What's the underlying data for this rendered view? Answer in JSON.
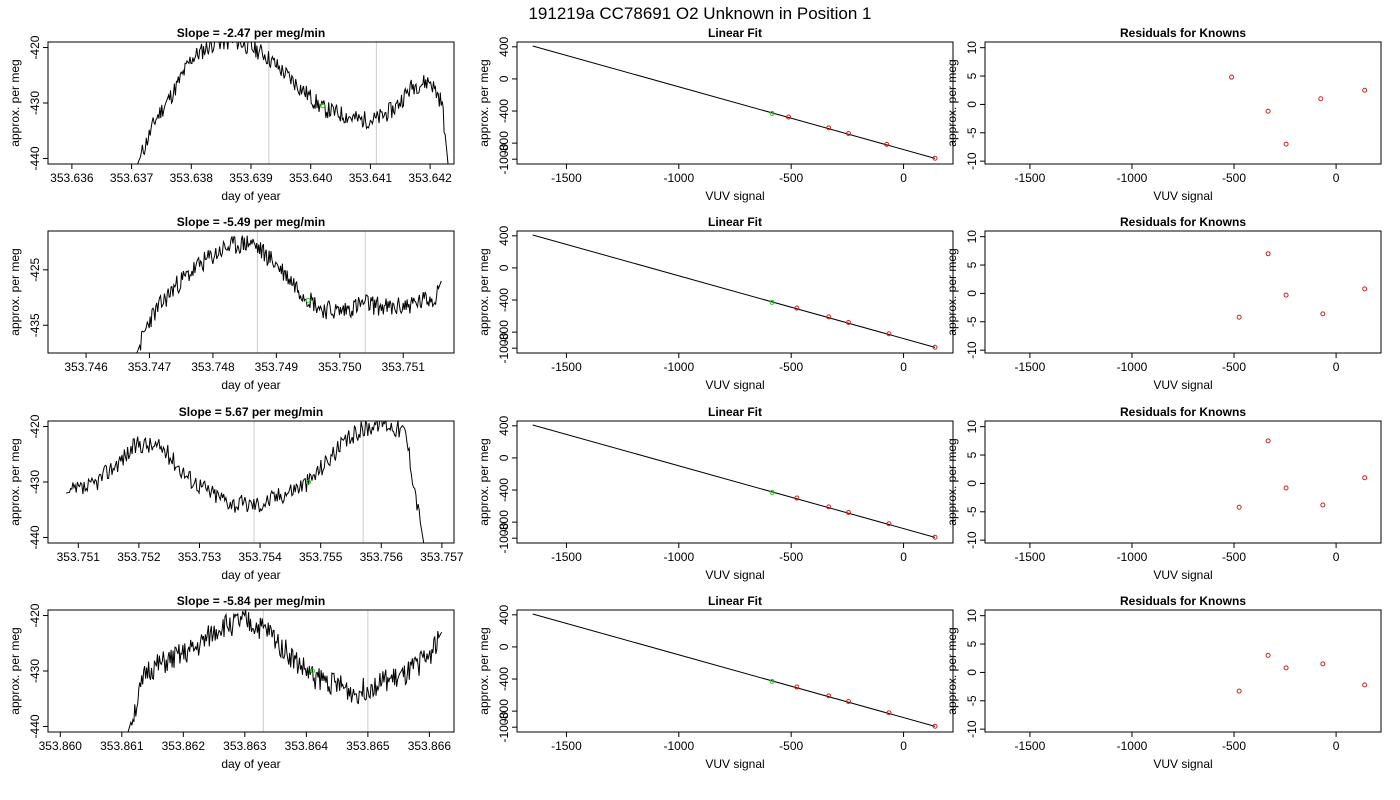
{
  "page_title": "191219a      CC78691   O2 Unknown in Position  1",
  "colors": {
    "series": "#000000",
    "unknown": "#22cc22",
    "known": "#cc2222",
    "marker_line": "#cccccc"
  },
  "chart_data": [
    {
      "type": "line",
      "title": "Slope =  -2.47  per meg/min",
      "xlabel": "day of year",
      "ylabel": "approx. per meg",
      "xlim": [
        353.6356,
        353.6424
      ],
      "ylim": [
        -441,
        -419
      ],
      "xticks": [
        353.636,
        353.637,
        353.638,
        353.639,
        353.64,
        353.641,
        353.642
      ],
      "xtick_labels": [
        "353.636",
        "353.637",
        "353.638",
        "353.639",
        "353.640",
        "353.641",
        "353.642"
      ],
      "yticks": [
        -440,
        -430,
        -420
      ],
      "ytick_labels": [
        "-440",
        "-430",
        "-420"
      ],
      "vlines": [
        353.6393,
        353.6411
      ],
      "highlight": {
        "x": 353.6402,
        "y": -430.5
      },
      "profile": [
        [
          353.6371,
          -441
        ],
        [
          353.6374,
          -433
        ],
        [
          353.6377,
          -428
        ],
        [
          353.638,
          -422
        ],
        [
          353.6384,
          -419
        ],
        [
          353.6388,
          -419
        ],
        [
          353.6392,
          -421
        ],
        [
          353.6396,
          -425
        ],
        [
          353.6399,
          -428
        ],
        [
          353.6402,
          -431
        ],
        [
          353.6405,
          -432
        ],
        [
          353.6408,
          -433
        ],
        [
          353.6411,
          -433
        ],
        [
          353.6414,
          -431
        ],
        [
          353.6417,
          -427
        ],
        [
          353.642,
          -426
        ],
        [
          353.6422,
          -430
        ],
        [
          353.6423,
          -441
        ]
      ],
      "noise_amp": 1.6,
      "seed": 11
    },
    {
      "type": "line",
      "title": "Slope =  -5.49  per meg/min",
      "xlabel": "day of year",
      "ylabel": "approx. per meg",
      "xlim": [
        353.7454,
        353.7518
      ],
      "ylim": [
        -440,
        -418
      ],
      "xticks": [
        353.746,
        353.747,
        353.748,
        353.749,
        353.75,
        353.751
      ],
      "xtick_labels": [
        "353.746",
        "353.747",
        "353.748",
        "353.749",
        "353.750",
        "353.751"
      ],
      "yticks": [
        -435,
        -425
      ],
      "ytick_labels": [
        "-435",
        "-425"
      ],
      "vlines": [
        353.7487,
        353.7504
      ],
      "highlight": {
        "x": 353.7495,
        "y": -430.5
      },
      "profile": [
        [
          353.7468,
          -440
        ],
        [
          353.747,
          -434
        ],
        [
          353.7474,
          -428
        ],
        [
          353.7478,
          -424
        ],
        [
          353.7482,
          -421
        ],
        [
          353.7486,
          -420
        ],
        [
          353.749,
          -424
        ],
        [
          353.7494,
          -429
        ],
        [
          353.7497,
          -432
        ],
        [
          353.75,
          -432.5
        ],
        [
          353.7504,
          -431
        ],
        [
          353.7508,
          -432
        ],
        [
          353.7512,
          -431
        ],
        [
          353.7515,
          -430
        ],
        [
          353.7516,
          -427
        ]
      ],
      "noise_amp": 1.8,
      "seed": 23
    },
    {
      "type": "line",
      "title": "Slope =  5.67  per meg/min",
      "xlabel": "day of year",
      "ylabel": "approx. per meg",
      "xlim": [
        353.7505,
        353.7572
      ],
      "ylim": [
        -441,
        -419
      ],
      "xticks": [
        353.751,
        353.752,
        353.753,
        353.754,
        353.755,
        353.756,
        353.757
      ],
      "xtick_labels": [
        "353.751",
        "353.752",
        "353.753",
        "353.754",
        "353.755",
        "353.756",
        "353.757"
      ],
      "yticks": [
        -440,
        -430,
        -420
      ],
      "ytick_labels": [
        "-440",
        "-430",
        "-420"
      ],
      "vlines": [
        353.7539,
        353.7557
      ],
      "highlight": {
        "x": 353.7548,
        "y": -430
      },
      "profile": [
        [
          353.7508,
          -432
        ],
        [
          353.7512,
          -431
        ],
        [
          353.7516,
          -427
        ],
        [
          353.752,
          -423
        ],
        [
          353.7524,
          -424
        ],
        [
          353.7528,
          -429
        ],
        [
          353.7532,
          -432
        ],
        [
          353.7536,
          -434
        ],
        [
          353.754,
          -434
        ],
        [
          353.7544,
          -432
        ],
        [
          353.7548,
          -430
        ],
        [
          353.7552,
          -425
        ],
        [
          353.7556,
          -421
        ],
        [
          353.756,
          -419
        ],
        [
          353.7564,
          -421
        ],
        [
          353.7567,
          -441
        ]
      ],
      "noise_amp": 1.7,
      "seed": 37
    },
    {
      "type": "line",
      "title": "Slope =  -5.84  per meg/min",
      "xlabel": "day of year",
      "ylabel": "approx. per meg",
      "xlim": [
        353.8598,
        353.8664
      ],
      "ylim": [
        -441,
        -419
      ],
      "xticks": [
        353.86,
        353.861,
        353.862,
        353.863,
        353.864,
        353.865,
        353.866
      ],
      "xtick_labels": [
        "353.860",
        "353.861",
        "353.862",
        "353.863",
        "353.864",
        "353.865",
        "353.866"
      ],
      "yticks": [
        -440,
        -430,
        -420
      ],
      "ytick_labels": [
        "-440",
        "-430",
        "-420"
      ],
      "vlines": [
        353.8633,
        353.865
      ],
      "highlight": {
        "x": 353.8641,
        "y": -430
      },
      "profile": [
        [
          353.8611,
          -441
        ],
        [
          353.8614,
          -430
        ],
        [
          353.8618,
          -428
        ],
        [
          353.8622,
          -426
        ],
        [
          353.8626,
          -422
        ],
        [
          353.863,
          -421
        ],
        [
          353.8634,
          -423
        ],
        [
          353.8638,
          -428
        ],
        [
          353.8641,
          -431
        ],
        [
          353.8644,
          -432
        ],
        [
          353.8648,
          -434
        ],
        [
          353.8652,
          -432
        ],
        [
          353.8656,
          -431
        ],
        [
          353.866,
          -427
        ],
        [
          353.8662,
          -423
        ]
      ],
      "noise_amp": 2.2,
      "seed": 51
    },
    {
      "type": "scatter",
      "title": "Linear Fit",
      "xlabel": "VUV signal",
      "ylabel": "approx. per meg",
      "xlim": [
        -1720,
        220
      ],
      "ylim": [
        -1060,
        460
      ],
      "xticks": [
        -1500,
        -1000,
        -500,
        0
      ],
      "xtick_labels": [
        "-1500",
        "-1000",
        "-500",
        "0"
      ],
      "yticks": [
        -1000,
        -800,
        -400,
        0,
        400
      ],
      "ytick_labels": [
        "-1000",
        "-800",
        "-400",
        "0",
        "400"
      ],
      "fit_line": [
        [
          -1650,
          410
        ],
        [
          140,
          -990
        ]
      ],
      "unknown_point": [
        -585,
        -430
      ],
      "known_points": [
        [
          -512,
          -475
        ],
        [
          -333,
          -610
        ],
        [
          -245,
          -680
        ],
        [
          -75,
          -815
        ],
        [
          140,
          -988
        ]
      ]
    },
    {
      "type": "scatter",
      "title": "Linear Fit",
      "xlabel": "VUV signal",
      "ylabel": "approx. per meg",
      "xlim": [
        -1720,
        220
      ],
      "ylim": [
        -1060,
        460
      ],
      "xticks": [
        -1500,
        -1000,
        -500,
        0
      ],
      "xtick_labels": [
        "-1500",
        "-1000",
        "-500",
        "0"
      ],
      "yticks": [
        -1000,
        -800,
        -400,
        0,
        400
      ],
      "ytick_labels": [
        "-1000",
        "-800",
        "-400",
        "0",
        "400"
      ],
      "fit_line": [
        [
          -1650,
          410
        ],
        [
          140,
          -990
        ]
      ],
      "unknown_point": [
        -585,
        -430
      ],
      "known_points": [
        [
          -475,
          -500
        ],
        [
          -333,
          -610
        ],
        [
          -245,
          -680
        ],
        [
          -65,
          -820
        ],
        [
          140,
          -988
        ]
      ]
    },
    {
      "type": "scatter",
      "title": "Linear Fit",
      "xlabel": "VUV signal",
      "ylabel": "approx. per meg",
      "xlim": [
        -1720,
        220
      ],
      "ylim": [
        -1060,
        460
      ],
      "xticks": [
        -1500,
        -1000,
        -500,
        0
      ],
      "xtick_labels": [
        "-1500",
        "-1000",
        "-500",
        "0"
      ],
      "yticks": [
        -1000,
        -800,
        -400,
        0,
        400
      ],
      "ytick_labels": [
        "-1000",
        "-800",
        "-400",
        "0",
        "400"
      ],
      "fit_line": [
        [
          -1650,
          410
        ],
        [
          140,
          -990
        ]
      ],
      "unknown_point": [
        -585,
        -430
      ],
      "known_points": [
        [
          -475,
          -500
        ],
        [
          -333,
          -610
        ],
        [
          -245,
          -680
        ],
        [
          -65,
          -820
        ],
        [
          140,
          -988
        ]
      ]
    },
    {
      "type": "scatter",
      "title": "Linear Fit",
      "xlabel": "VUV signal",
      "ylabel": "approx. per meg",
      "xlim": [
        -1720,
        220
      ],
      "ylim": [
        -1060,
        460
      ],
      "xticks": [
        -1500,
        -1000,
        -500,
        0
      ],
      "xtick_labels": [
        "-1500",
        "-1000",
        "-500",
        "0"
      ],
      "yticks": [
        -1000,
        -800,
        -400,
        0,
        400
      ],
      "ytick_labels": [
        "-1000",
        "-800",
        "-400",
        "0",
        "400"
      ],
      "fit_line": [
        [
          -1650,
          410
        ],
        [
          140,
          -990
        ]
      ],
      "unknown_point": [
        -585,
        -430
      ],
      "known_points": [
        [
          -475,
          -500
        ],
        [
          -333,
          -610
        ],
        [
          -245,
          -680
        ],
        [
          -65,
          -820
        ],
        [
          140,
          -988
        ]
      ]
    },
    {
      "type": "scatter",
      "title": "Residuals for Knowns",
      "xlabel": "VUV signal",
      "ylabel": "approx. per meg",
      "xlim": [
        -1720,
        220
      ],
      "ylim": [
        -10.5,
        11
      ],
      "xticks": [
        -1500,
        -1000,
        -500,
        0
      ],
      "xtick_labels": [
        "-1500",
        "-1000",
        "-500",
        "0"
      ],
      "yticks": [
        -10,
        -5,
        0,
        5,
        10
      ],
      "ytick_labels": [
        "-10",
        "-5",
        "0",
        "5",
        "10"
      ],
      "known_points": [
        [
          -512,
          4.8
        ],
        [
          -333,
          -1.2
        ],
        [
          -245,
          -7.0
        ],
        [
          -75,
          1.0
        ],
        [
          140,
          2.5
        ]
      ]
    },
    {
      "type": "scatter",
      "title": "Residuals for Knowns",
      "xlabel": "VUV signal",
      "ylabel": "approx. per meg",
      "xlim": [
        -1720,
        220
      ],
      "ylim": [
        -10.5,
        11
      ],
      "xticks": [
        -1500,
        -1000,
        -500,
        0
      ],
      "xtick_labels": [
        "-1500",
        "-1000",
        "-500",
        "0"
      ],
      "yticks": [
        -10,
        -5,
        0,
        5,
        10
      ],
      "ytick_labels": [
        "-10",
        "-5",
        "0",
        "5",
        "10"
      ],
      "known_points": [
        [
          -475,
          -4.2
        ],
        [
          -333,
          7.0
        ],
        [
          -245,
          -0.3
        ],
        [
          -65,
          -3.6
        ],
        [
          140,
          0.8
        ]
      ]
    },
    {
      "type": "scatter",
      "title": "Residuals for Knowns",
      "xlabel": "VUV signal",
      "ylabel": "approx. per meg",
      "xlim": [
        -1720,
        220
      ],
      "ylim": [
        -10.5,
        11
      ],
      "xticks": [
        -1500,
        -1000,
        -500,
        0
      ],
      "xtick_labels": [
        "-1500",
        "-1000",
        "-500",
        "0"
      ],
      "yticks": [
        -10,
        -5,
        0,
        5,
        10
      ],
      "ytick_labels": [
        "-10",
        "-5",
        "0",
        "5",
        "10"
      ],
      "known_points": [
        [
          -475,
          -4.2
        ],
        [
          -333,
          7.5
        ],
        [
          -245,
          -0.8
        ],
        [
          -65,
          -3.8
        ],
        [
          140,
          1.0
        ]
      ]
    },
    {
      "type": "scatter",
      "title": "Residuals for Knowns",
      "xlabel": "VUV signal",
      "ylabel": "approx. per meg",
      "xlim": [
        -1720,
        220
      ],
      "ylim": [
        -10.5,
        11
      ],
      "xticks": [
        -1500,
        -1000,
        -500,
        0
      ],
      "xtick_labels": [
        "-1500",
        "-1000",
        "-500",
        "0"
      ],
      "yticks": [
        -10,
        -5,
        0,
        5,
        10
      ],
      "ytick_labels": [
        "-10",
        "-5",
        "0",
        "5",
        "10"
      ],
      "known_points": [
        [
          -475,
          -3.3
        ],
        [
          -333,
          3.0
        ],
        [
          -245,
          0.8
        ],
        [
          -65,
          1.5
        ],
        [
          140,
          -2.2
        ]
      ]
    }
  ]
}
